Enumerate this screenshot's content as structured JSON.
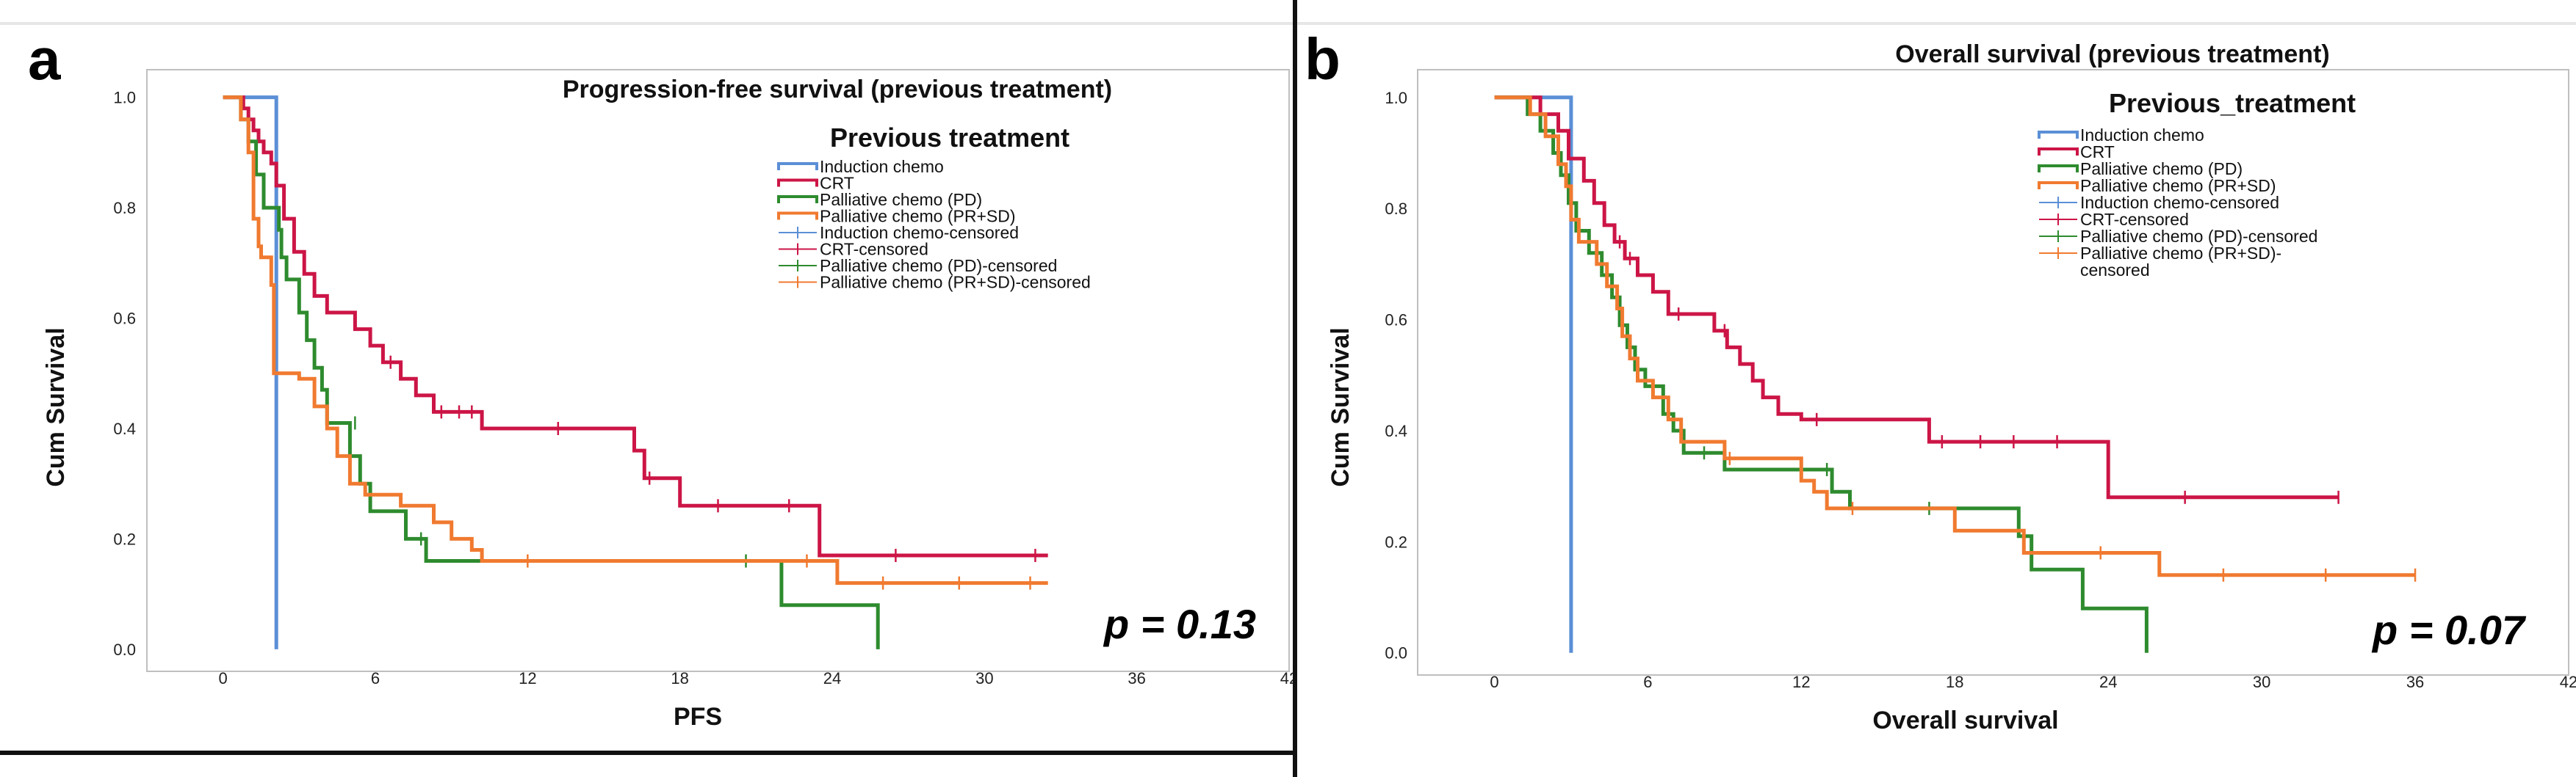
{
  "colors": {
    "induction": "#5b8fd6",
    "crt": "#cc1546",
    "pd": "#2e8b2e",
    "prsd": "#f07a30"
  },
  "chart_data": [
    {
      "type": "line",
      "subtype": "kaplan-meier",
      "panel_label": "a",
      "title": "Progression-free survival (previous treatment)",
      "legend_title": "Previous treatment",
      "legend_items": [
        "Induction chemo",
        "CRT",
        "Palliative chemo (PD)",
        "Palliative chemo (PR+SD)",
        "Induction chemo-censored",
        "CRT-censored",
        "Palliative chemo (PD)-censored",
        "Palliative chemo (PR+SD)-censored"
      ],
      "legend_position": "top-right",
      "xlabel": "PFS",
      "ylabel": "Cum Survival",
      "xlim": [
        -3,
        42
      ],
      "ylim": [
        -0.04,
        1.05
      ],
      "xticks": [
        0,
        6,
        12,
        18,
        24,
        30,
        36,
        42
      ],
      "yticks": [
        0.0,
        0.2,
        0.4,
        0.6,
        0.8,
        1.0
      ],
      "annotation": "p = 0.13",
      "series": [
        {
          "name": "Induction chemo",
          "color": "#5b8fd6",
          "steps": [
            [
              0,
              1.0
            ],
            [
              2.1,
              1.0
            ],
            [
              2.1,
              0.0
            ]
          ],
          "censored": []
        },
        {
          "name": "CRT",
          "color": "#cc1546",
          "steps": [
            [
              0,
              1.0
            ],
            [
              0.8,
              0.98
            ],
            [
              1.0,
              0.96
            ],
            [
              1.2,
              0.94
            ],
            [
              1.4,
              0.92
            ],
            [
              1.6,
              0.9
            ],
            [
              1.9,
              0.88
            ],
            [
              2.1,
              0.84
            ],
            [
              2.4,
              0.78
            ],
            [
              2.8,
              0.72
            ],
            [
              3.2,
              0.68
            ],
            [
              3.6,
              0.64
            ],
            [
              4.1,
              0.61
            ],
            [
              5.2,
              0.58
            ],
            [
              5.8,
              0.55
            ],
            [
              6.3,
              0.52
            ],
            [
              7.0,
              0.49
            ],
            [
              7.6,
              0.46
            ],
            [
              8.3,
              0.43
            ],
            [
              10.2,
              0.4
            ],
            [
              16.2,
              0.36
            ],
            [
              16.6,
              0.31
            ],
            [
              18.0,
              0.26
            ],
            [
              23.5,
              0.26
            ],
            [
              23.5,
              0.17
            ],
            [
              32.5,
              0.17
            ]
          ],
          "censored": [
            [
              6.6,
              0.52
            ],
            [
              8.6,
              0.43
            ],
            [
              9.3,
              0.43
            ],
            [
              9.8,
              0.43
            ],
            [
              13.2,
              0.4
            ],
            [
              16.8,
              0.31
            ],
            [
              19.5,
              0.26
            ],
            [
              22.3,
              0.26
            ],
            [
              26.5,
              0.17
            ],
            [
              32.0,
              0.17
            ]
          ]
        },
        {
          "name": "Palliative chemo (PD)",
          "color": "#2e8b2e",
          "steps": [
            [
              0,
              1.0
            ],
            [
              0.7,
              0.96
            ],
            [
              1.0,
              0.92
            ],
            [
              1.3,
              0.86
            ],
            [
              1.6,
              0.8
            ],
            [
              2.2,
              0.76
            ],
            [
              2.3,
              0.71
            ],
            [
              2.5,
              0.67
            ],
            [
              3.0,
              0.61
            ],
            [
              3.3,
              0.56
            ],
            [
              3.6,
              0.51
            ],
            [
              3.9,
              0.47
            ],
            [
              4.1,
              0.41
            ],
            [
              5.0,
              0.35
            ],
            [
              5.4,
              0.3
            ],
            [
              5.8,
              0.25
            ],
            [
              7.2,
              0.2
            ],
            [
              8.0,
              0.16
            ],
            [
              22.0,
              0.16
            ],
            [
              22.0,
              0.08
            ],
            [
              25.8,
              0.08
            ],
            [
              25.8,
              0.0
            ]
          ],
          "censored": [
            [
              5.2,
              0.41
            ],
            [
              7.8,
              0.2
            ],
            [
              20.6,
              0.16
            ]
          ]
        },
        {
          "name": "Palliative chemo (PR+SD)",
          "color": "#f07a30",
          "steps": [
            [
              0,
              1.0
            ],
            [
              0.7,
              0.96
            ],
            [
              1.0,
              0.9
            ],
            [
              1.2,
              0.78
            ],
            [
              1.4,
              0.73
            ],
            [
              1.5,
              0.71
            ],
            [
              1.9,
              0.66
            ],
            [
              2.0,
              0.5
            ],
            [
              2.2,
              0.5
            ],
            [
              3.0,
              0.49
            ],
            [
              3.6,
              0.44
            ],
            [
              4.1,
              0.4
            ],
            [
              4.5,
              0.35
            ],
            [
              5.0,
              0.3
            ],
            [
              5.6,
              0.28
            ],
            [
              7.0,
              0.26
            ],
            [
              8.3,
              0.23
            ],
            [
              9.0,
              0.2
            ],
            [
              9.8,
              0.18
            ],
            [
              10.2,
              0.16
            ],
            [
              24.2,
              0.16
            ],
            [
              24.2,
              0.12
            ],
            [
              32.5,
              0.12
            ]
          ],
          "censored": [
            [
              12.0,
              0.16
            ],
            [
              23.0,
              0.16
            ],
            [
              26.0,
              0.12
            ],
            [
              29.0,
              0.12
            ],
            [
              31.8,
              0.12
            ]
          ]
        }
      ]
    },
    {
      "type": "line",
      "subtype": "kaplan-meier",
      "panel_label": "b",
      "title": "Overall survival (previous treatment)",
      "legend_title": "Previous_treatment",
      "legend_items": [
        "Induction chemo",
        "CRT",
        "Palliative chemo (PD)",
        "Palliative chemo (PR+SD)",
        "Induction chemo-censored",
        "CRT-censored",
        "Palliative chemo (PD)-censored",
        "Palliative chemo (PR+SD)-",
        "censored"
      ],
      "legend_position": "top-right",
      "xlabel": "Overall survival",
      "ylabel": "Cum Survival",
      "xlim": [
        -3,
        42
      ],
      "ylim": [
        -0.04,
        1.05
      ],
      "xticks": [
        0,
        6,
        12,
        18,
        24,
        30,
        36,
        42
      ],
      "yticks": [
        0.0,
        0.2,
        0.4,
        0.6,
        0.8,
        1.0
      ],
      "annotation": "p = 0.07",
      "series": [
        {
          "name": "Induction chemo",
          "color": "#5b8fd6",
          "steps": [
            [
              0,
              1.0
            ],
            [
              3.0,
              1.0
            ],
            [
              3.0,
              0.0
            ]
          ],
          "censored": []
        },
        {
          "name": "CRT",
          "color": "#cc1546",
          "steps": [
            [
              0,
              1.0
            ],
            [
              1.8,
              0.97
            ],
            [
              2.5,
              0.94
            ],
            [
              2.9,
              0.89
            ],
            [
              3.5,
              0.85
            ],
            [
              3.9,
              0.81
            ],
            [
              4.3,
              0.77
            ],
            [
              4.7,
              0.74
            ],
            [
              5.1,
              0.71
            ],
            [
              5.6,
              0.68
            ],
            [
              6.2,
              0.65
            ],
            [
              6.8,
              0.61
            ],
            [
              8.6,
              0.58
            ],
            [
              9.1,
              0.55
            ],
            [
              9.6,
              0.52
            ],
            [
              10.1,
              0.49
            ],
            [
              10.5,
              0.46
            ],
            [
              11.1,
              0.43
            ],
            [
              12.0,
              0.42
            ],
            [
              17.0,
              0.38
            ],
            [
              24.0,
              0.38
            ],
            [
              24.0,
              0.28
            ],
            [
              33.0,
              0.28
            ]
          ],
          "censored": [
            [
              4.9,
              0.74
            ],
            [
              5.3,
              0.71
            ],
            [
              7.2,
              0.61
            ],
            [
              9.0,
              0.58
            ],
            [
              12.6,
              0.42
            ],
            [
              17.5,
              0.38
            ],
            [
              19.0,
              0.38
            ],
            [
              20.3,
              0.38
            ],
            [
              22.0,
              0.38
            ],
            [
              27.0,
              0.28
            ],
            [
              33.0,
              0.28
            ]
          ]
        },
        {
          "name": "Palliative chemo (PD)",
          "color": "#2e8b2e",
          "steps": [
            [
              0,
              1.0
            ],
            [
              1.3,
              0.97
            ],
            [
              1.8,
              0.94
            ],
            [
              2.3,
              0.9
            ],
            [
              2.6,
              0.86
            ],
            [
              2.9,
              0.81
            ],
            [
              3.2,
              0.76
            ],
            [
              3.7,
              0.72
            ],
            [
              4.2,
              0.68
            ],
            [
              4.6,
              0.64
            ],
            [
              4.9,
              0.59
            ],
            [
              5.2,
              0.55
            ],
            [
              5.5,
              0.51
            ],
            [
              5.9,
              0.48
            ],
            [
              6.6,
              0.43
            ],
            [
              7.0,
              0.4
            ],
            [
              7.4,
              0.36
            ],
            [
              9.0,
              0.33
            ],
            [
              13.2,
              0.33
            ],
            [
              13.2,
              0.29
            ],
            [
              13.9,
              0.29
            ],
            [
              13.9,
              0.26
            ],
            [
              20.5,
              0.26
            ],
            [
              20.5,
              0.21
            ],
            [
              21.0,
              0.15
            ],
            [
              22.5,
              0.15
            ],
            [
              23.0,
              0.08
            ],
            [
              25.5,
              0.08
            ],
            [
              25.5,
              0.0
            ]
          ],
          "censored": [
            [
              8.2,
              0.36
            ],
            [
              13.0,
              0.33
            ],
            [
              17.0,
              0.26
            ]
          ]
        },
        {
          "name": "Palliative chemo (PR+SD)",
          "color": "#f07a30",
          "steps": [
            [
              0,
              1.0
            ],
            [
              1.4,
              0.97
            ],
            [
              2.0,
              0.93
            ],
            [
              2.5,
              0.88
            ],
            [
              2.8,
              0.84
            ],
            [
              3.0,
              0.78
            ],
            [
              3.3,
              0.74
            ],
            [
              4.0,
              0.7
            ],
            [
              4.4,
              0.66
            ],
            [
              4.8,
              0.62
            ],
            [
              5.0,
              0.57
            ],
            [
              5.3,
              0.53
            ],
            [
              5.6,
              0.49
            ],
            [
              6.2,
              0.46
            ],
            [
              6.8,
              0.42
            ],
            [
              7.3,
              0.38
            ],
            [
              9.0,
              0.35
            ],
            [
              12.0,
              0.31
            ],
            [
              12.5,
              0.29
            ],
            [
              13.0,
              0.26
            ],
            [
              18.0,
              0.26
            ],
            [
              18.0,
              0.22
            ],
            [
              20.7,
              0.22
            ],
            [
              20.7,
              0.18
            ],
            [
              23.4,
              0.18
            ],
            [
              24.0,
              0.18
            ],
            [
              26.0,
              0.14
            ],
            [
              36.0,
              0.14
            ]
          ],
          "censored": [
            [
              9.2,
              0.35
            ],
            [
              14.0,
              0.26
            ],
            [
              23.7,
              0.18
            ],
            [
              28.5,
              0.14
            ],
            [
              32.5,
              0.14
            ],
            [
              36.0,
              0.14
            ]
          ]
        }
      ]
    }
  ]
}
